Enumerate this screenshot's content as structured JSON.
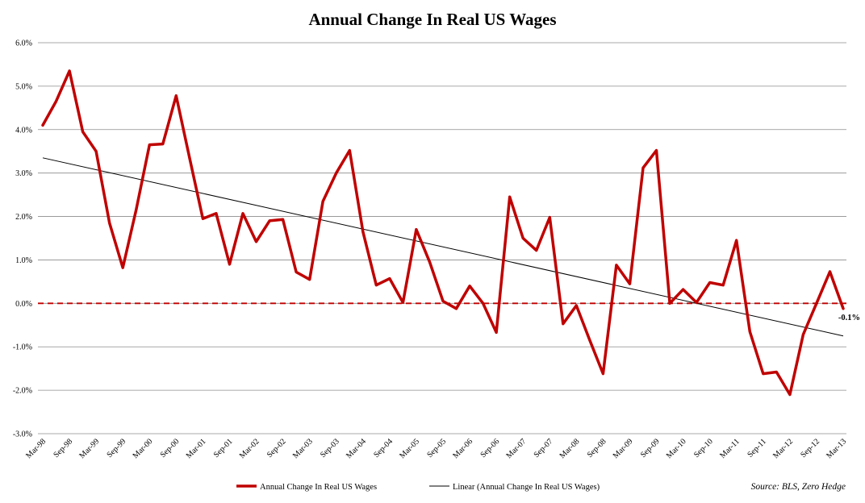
{
  "chart_data": {
    "type": "line",
    "title": "Annual Change In Real US Wages",
    "xlabel": "",
    "ylabel": "",
    "ylim": [
      -3.0,
      6.0
    ],
    "yticks": [
      "-3.0%",
      "-2.0%",
      "-1.0%",
      "0.0%",
      "1.0%",
      "2.0%",
      "3.0%",
      "4.0%",
      "5.0%",
      "6.0%"
    ],
    "ytick_values": [
      -3,
      -2,
      -1,
      0,
      1,
      2,
      3,
      4,
      5,
      6
    ],
    "xticks": [
      "Mar-98",
      "Sep-98",
      "Mar-99",
      "Sep-99",
      "Mar-00",
      "Sep-00",
      "Mar-01",
      "Sep-01",
      "Mar-02",
      "Sep-02",
      "Mar-03",
      "Sep-03",
      "Mar-04",
      "Sep-04",
      "Mar-05",
      "Sep-05",
      "Mar-06",
      "Sep-06",
      "Mar-07",
      "Sep-07",
      "Mar-08",
      "Sep-08",
      "Mar-09",
      "Sep-09",
      "Mar-10",
      "Sep-10",
      "Mar-11",
      "Sep-11",
      "Mar-12",
      "Sep-12",
      "Mar-13"
    ],
    "grid": true,
    "legend_position": "bottom",
    "series": [
      {
        "name": "Annual Change In Real US Wages",
        "color": "#c00000",
        "values": [
          4.1,
          4.65,
          5.35,
          3.95,
          3.5,
          1.85,
          0.82,
          2.15,
          3.65,
          3.67,
          4.78,
          3.35,
          1.95,
          2.07,
          0.9,
          2.07,
          1.42,
          1.9,
          1.93,
          0.72,
          0.55,
          2.35,
          3.0,
          3.52,
          1.65,
          0.42,
          0.57,
          0.02,
          1.7,
          0.95,
          0.05,
          -0.12,
          0.4,
          0.0,
          -0.67,
          2.45,
          1.5,
          1.22,
          1.98,
          -0.47,
          -0.05,
          -0.85,
          -1.62,
          0.88,
          0.45,
          3.12,
          3.52,
          0.0,
          0.32,
          0.02,
          0.48,
          0.42,
          1.45,
          -0.65,
          -1.62,
          -1.58,
          -2.1,
          -0.72,
          0.0,
          0.73,
          -0.12
        ]
      },
      {
        "name": "Linear (Annual Change In Real US Wages)",
        "color": "#000000",
        "trend_start": 3.35,
        "trend_end": -0.75
      }
    ],
    "reference_line": {
      "value": 0.0,
      "color": "#c00000",
      "style": "dashed"
    },
    "end_label": "-0.1%",
    "source": "Source: BLS, Zero Hedge"
  }
}
